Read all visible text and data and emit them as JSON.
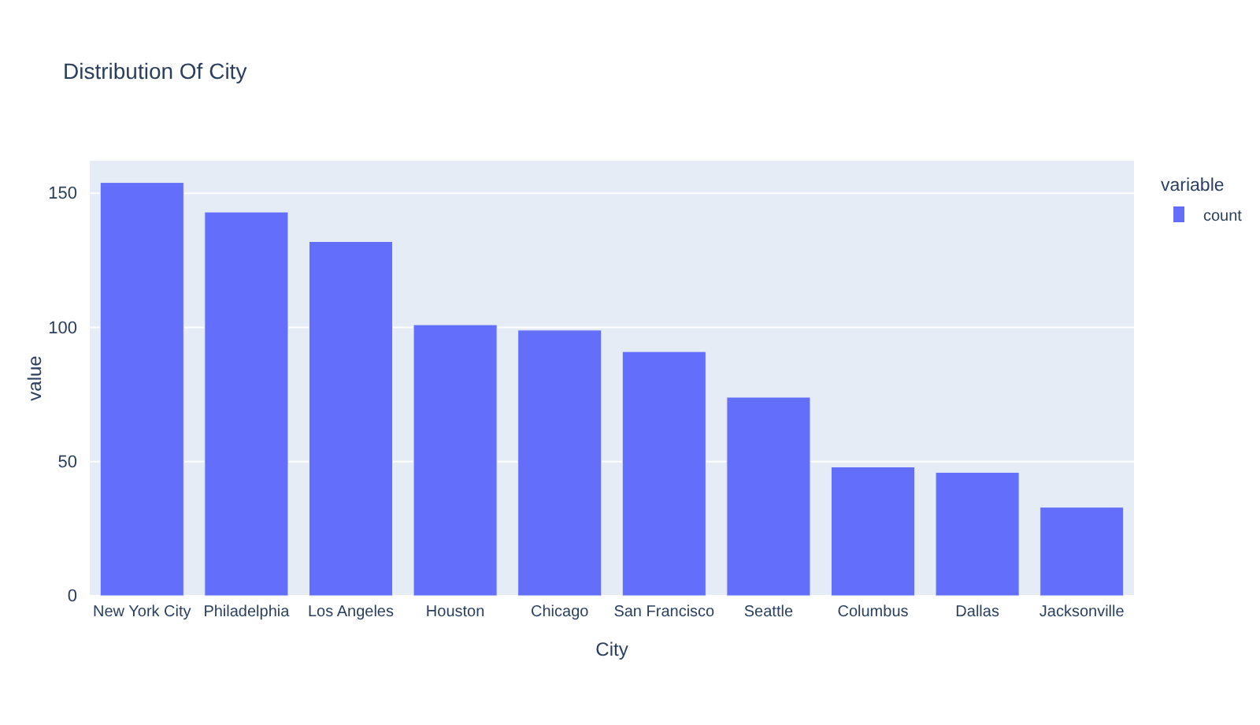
{
  "chart_data": {
    "type": "bar",
    "title": "Distribution Of City",
    "xlabel": "City",
    "ylabel": "value",
    "legend_title": "variable",
    "categories": [
      "New York City",
      "Philadelphia",
      "Los Angeles",
      "Houston",
      "Chicago",
      "San Francisco",
      "Seattle",
      "Columbus",
      "Dallas",
      "Jacksonville"
    ],
    "series": [
      {
        "name": "count",
        "color": "#636efa",
        "values": [
          154,
          143,
          132,
          101,
          99,
          91,
          74,
          48,
          46,
          33
        ]
      }
    ],
    "ylim": [
      0,
      162.1
    ],
    "yticks": [
      0,
      50,
      100,
      150
    ],
    "grid": "y",
    "legend": "top right"
  }
}
